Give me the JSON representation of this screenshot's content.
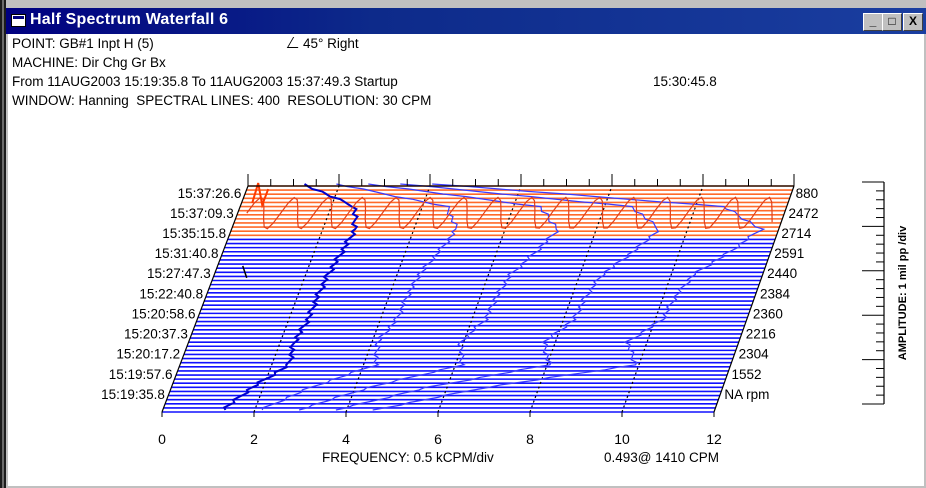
{
  "window": {
    "title": "Half Spectrum Waterfall 6",
    "minimize_label": "_",
    "maximize_label": "□",
    "close_label": "X"
  },
  "header": {
    "point": "POINT: GB#1 Inpt H (5)",
    "direction": "45° Right",
    "machine": "MACHINE: Dir Chg Gr Bx",
    "range": "From 11AUG2003 15:19:35.8 To 11AUG2003 15:37:49.3 Startup",
    "time": "15:30:45.8",
    "window_info": "WINDOW: Hanning  SPECTRAL LINES: 400  RESOLUTION: 30 CPM"
  },
  "colors": {
    "trace_blue": "#1010ff",
    "highlight_orange": "#ff6a2a",
    "accent": "#000080"
  },
  "chart_data": {
    "type": "line",
    "subtype": "waterfall",
    "xlabel": "FREQUENCY: 0.5 kCPM/div",
    "xlim": [
      0,
      12
    ],
    "x_ticks": [
      "0",
      "2",
      "4",
      "6",
      "8",
      "10",
      "12"
    ],
    "cursor_readout": "0.493@ 1410 CPM",
    "ylabel": "AMPLITUDE: 1 mil pp /div",
    "time_labels": [
      "15:37:26.6",
      "15:37:09.3",
      "15:35:15.8",
      "15:31:40.8",
      "15:27:47.3",
      "15:22:40.8",
      "15:20:58.6",
      "15:20:37.3",
      "15:20:17.2",
      "15:19:57.6",
      "15:19:35.8"
    ],
    "rpm_labels": [
      "880",
      "2472",
      "2714",
      "2591",
      "2440",
      "2384",
      "2360",
      "2216",
      "2304",
      "1552",
      "NA rpm"
    ],
    "highlighted_time_range": [
      "15:37:09.3",
      "15:37:49.3"
    ],
    "spectrum_count": 56,
    "order_lines_at_frequency": [
      2,
      4,
      6,
      8,
      10
    ]
  }
}
